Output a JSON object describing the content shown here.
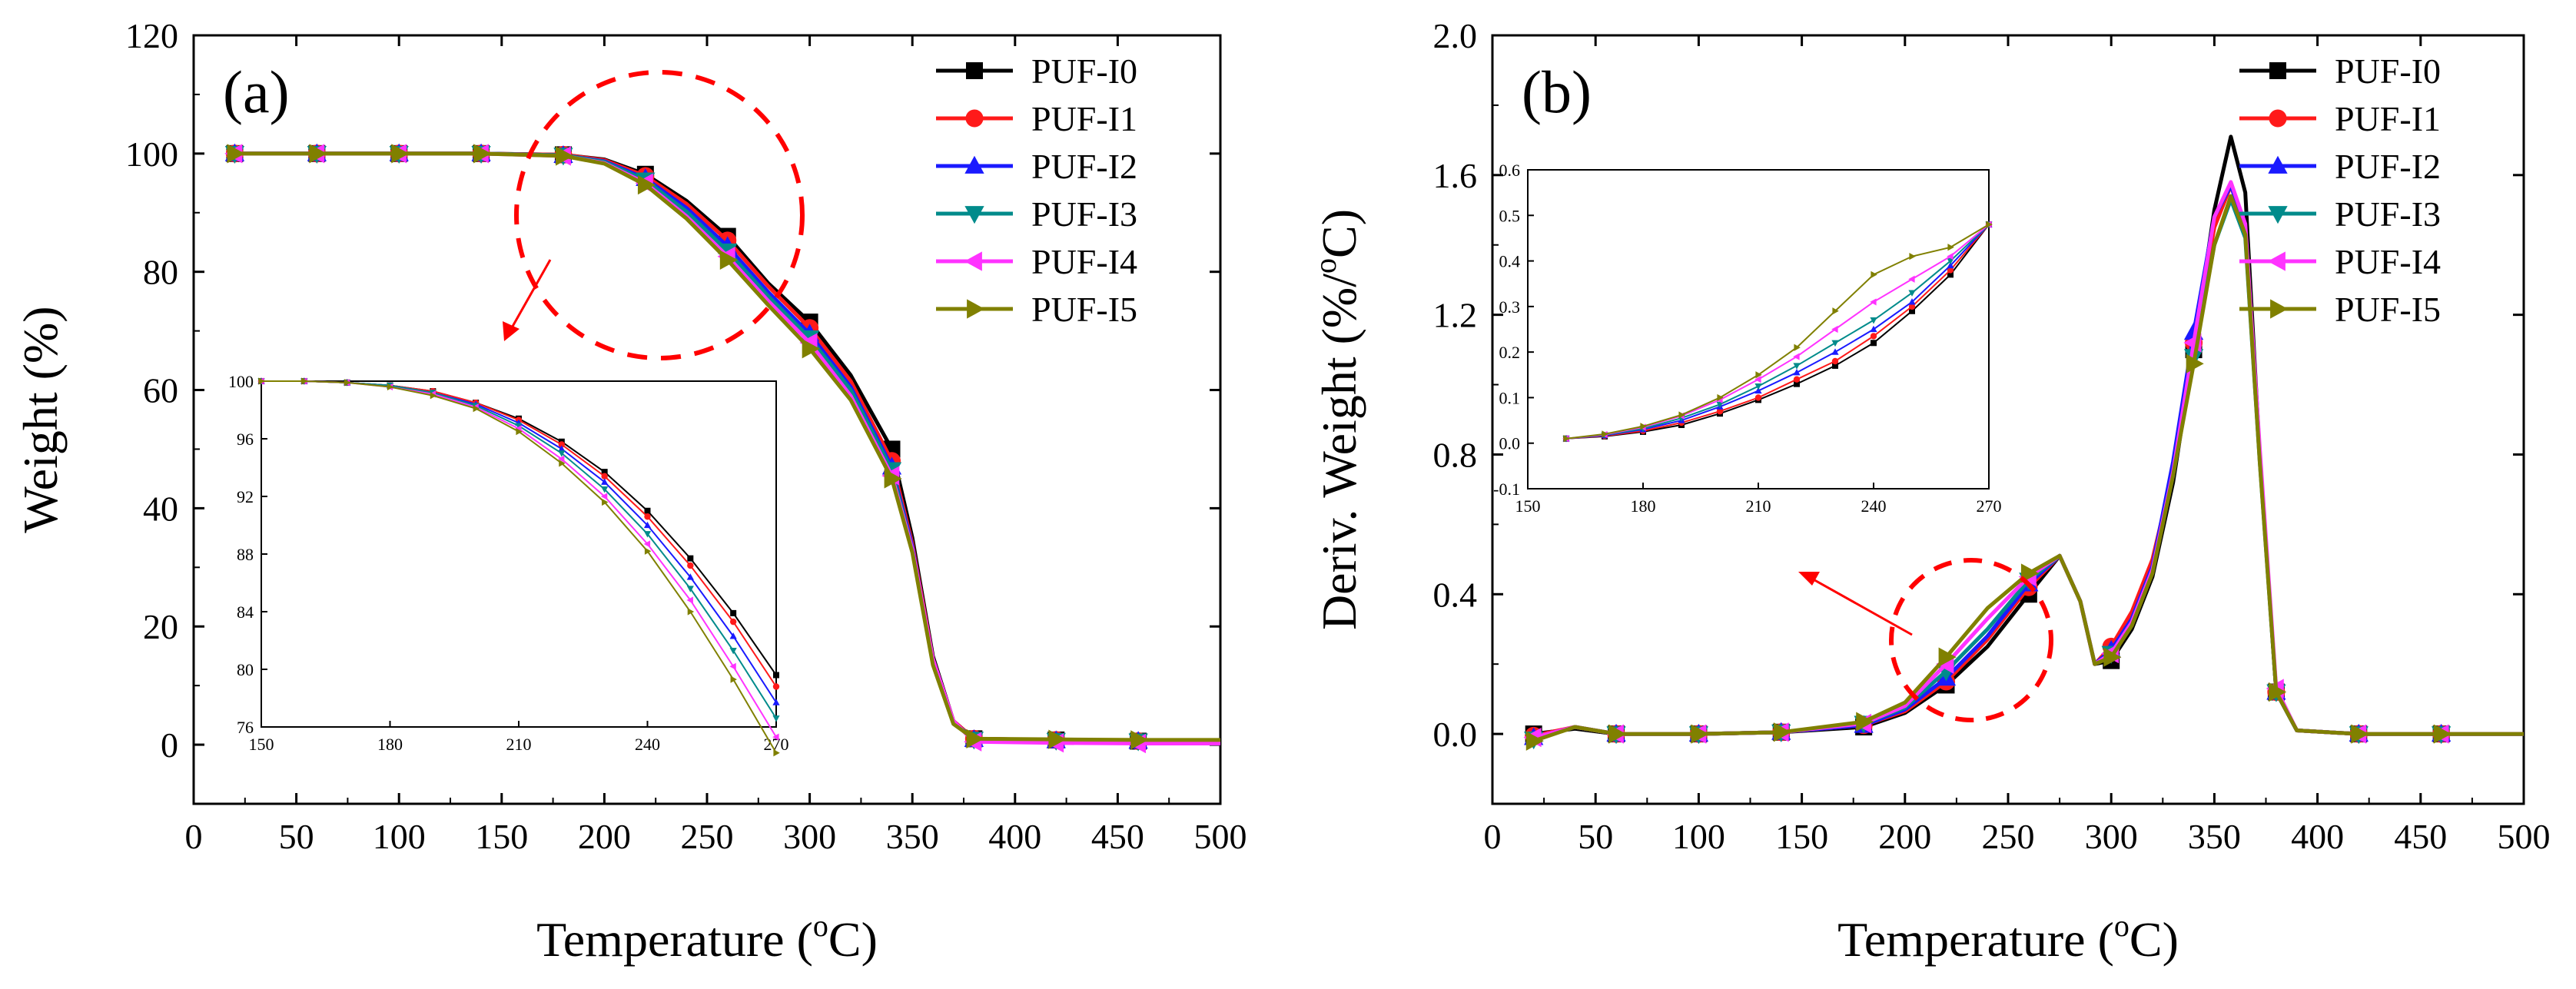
{
  "series_names": [
    "PUF-I0",
    "PUF-I1",
    "PUF-I2",
    "PUF-I3",
    "PUF-I4",
    "PUF-I5"
  ],
  "series_colors": [
    "#000000",
    "#ff1a1a",
    "#1a1aff",
    "#008b8b",
    "#ff33ff",
    "#808000"
  ],
  "series_markers": [
    "square",
    "circle",
    "triangle-up",
    "triangle-down",
    "triangle-left",
    "triangle-right"
  ],
  "highlight_color": "#ff0000",
  "chart_data": [
    {
      "type": "line",
      "panel_label": "(a)",
      "title": "",
      "xlabel": "Temperature (oC)",
      "xlabel_main": "Temperature (",
      "xlabel_sup": "o",
      "xlabel_tail": "C)",
      "ylabel": "Weight (%)",
      "xlim": [
        0,
        500
      ],
      "ylim": [
        -10,
        120
      ],
      "xticks": [
        0,
        50,
        100,
        150,
        200,
        250,
        300,
        350,
        400,
        450,
        500
      ],
      "yticks": [
        0,
        20,
        40,
        60,
        80,
        100,
        120
      ],
      "legend": "top-right",
      "x": [
        20,
        60,
        100,
        140,
        180,
        200,
        220,
        240,
        260,
        280,
        300,
        320,
        340,
        350,
        360,
        370,
        380,
        420,
        460,
        500
      ],
      "series": [
        {
          "name": "PUF-I0",
          "values": [
            100,
            100,
            100,
            100,
            99.8,
            99.0,
            96.5,
            92.0,
            86.0,
            78.0,
            71.5,
            62.5,
            50.0,
            35.0,
            15.0,
            4.0,
            1.0,
            0.8,
            0.6,
            0.5
          ]
        },
        {
          "name": "PUF-I1",
          "values": [
            100,
            100,
            100,
            100,
            99.8,
            98.9,
            96.2,
            91.5,
            85.3,
            77.5,
            70.5,
            61.5,
            48.0,
            34.0,
            14.5,
            4.0,
            1.0,
            0.8,
            0.6,
            0.5
          ]
        },
        {
          "name": "PUF-I2",
          "values": [
            100,
            100,
            100,
            100,
            99.7,
            98.7,
            95.8,
            90.8,
            84.3,
            76.5,
            69.5,
            60.5,
            47.0,
            33.5,
            14.0,
            3.8,
            0.9,
            0.7,
            0.6,
            0.5
          ]
        },
        {
          "name": "PUF-I3",
          "values": [
            100,
            100,
            100,
            100,
            99.7,
            98.6,
            95.5,
            90.2,
            83.5,
            75.8,
            68.8,
            60.0,
            46.5,
            33.0,
            14.0,
            3.8,
            0.9,
            0.7,
            0.6,
            0.5
          ]
        },
        {
          "name": "PUF-I4",
          "values": [
            100,
            100,
            100,
            100,
            99.6,
            98.4,
            95.0,
            89.4,
            82.6,
            75.0,
            68.0,
            59.0,
            45.5,
            33.0,
            14.5,
            4.0,
            0.5,
            0.3,
            0.2,
            0.2
          ]
        },
        {
          "name": "PUF-I5",
          "values": [
            100,
            100,
            100,
            100,
            99.6,
            98.3,
            94.7,
            89.0,
            82.0,
            74.3,
            67.0,
            58.3,
            45.0,
            32.5,
            13.5,
            3.5,
            1.0,
            0.9,
            0.8,
            0.8
          ]
        }
      ],
      "inset": {
        "xlim": [
          150,
          270
        ],
        "ylim": [
          76,
          100
        ],
        "xticks": [
          150,
          180,
          210,
          240,
          270
        ],
        "yticks": [
          76,
          80,
          84,
          88,
          92,
          96,
          100
        ],
        "x": [
          150,
          160,
          170,
          180,
          190,
          200,
          210,
          220,
          230,
          240,
          250,
          260,
          270
        ],
        "series": [
          {
            "name": "PUF-I0",
            "values": [
              100,
              100,
              99.9,
              99.7,
              99.3,
              98.5,
              97.4,
              95.8,
              93.7,
              91.0,
              87.7,
              83.9,
              79.6
            ]
          },
          {
            "name": "PUF-I1",
            "values": [
              100,
              100,
              99.9,
              99.7,
              99.3,
              98.5,
              97.3,
              95.6,
              93.4,
              90.6,
              87.2,
              83.3,
              78.8
            ]
          },
          {
            "name": "PUF-I2",
            "values": [
              100,
              100,
              99.9,
              99.7,
              99.2,
              98.4,
              97.1,
              95.3,
              93.0,
              90.0,
              86.4,
              82.3,
              77.7
            ]
          },
          {
            "name": "PUF-I3",
            "values": [
              100,
              100,
              99.9,
              99.7,
              99.2,
              98.3,
              96.9,
              95.0,
              92.5,
              89.4,
              85.6,
              81.3,
              76.6
            ]
          },
          {
            "name": "PUF-I4",
            "values": [
              100,
              100,
              99.9,
              99.6,
              99.1,
              98.2,
              96.7,
              94.6,
              92.0,
              88.7,
              84.8,
              80.2,
              75.3
            ]
          },
          {
            "name": "PUF-I5",
            "values": [
              100,
              100,
              99.9,
              99.6,
              99.0,
              98.1,
              96.5,
              94.3,
              91.6,
              88.2,
              84.0,
              79.3,
              74.2
            ]
          }
        ]
      }
    },
    {
      "type": "line",
      "panel_label": "(b)",
      "title": "",
      "xlabel": "Temperature (oC)",
      "xlabel_main": "Temperature (",
      "xlabel_sup": "o",
      "xlabel_tail": "C)",
      "ylabel": "Deriv. Weight (%/oC)",
      "ylabel_main": "Deriv. Weight (%/",
      "ylabel_sup": "o",
      "ylabel_tail": "C)",
      "xlim": [
        0,
        500
      ],
      "ylim": [
        -0.2,
        2.0
      ],
      "xticks": [
        0,
        50,
        100,
        150,
        200,
        250,
        300,
        350,
        400,
        450,
        500
      ],
      "yticks": [
        0.0,
        0.4,
        0.8,
        1.2,
        1.6,
        2.0
      ],
      "yticklabels": [
        "0.0",
        "0.4",
        "0.8",
        "1.2",
        "1.6",
        "2.0"
      ],
      "legend": "top-right",
      "x": [
        20,
        40,
        60,
        80,
        100,
        140,
        180,
        200,
        220,
        240,
        260,
        275,
        285,
        292,
        300,
        310,
        320,
        330,
        340,
        350,
        358,
        365,
        372,
        380,
        390,
        420,
        460,
        500
      ],
      "series": [
        {
          "name": "PUF-I0",
          "values": [
            0,
            0.015,
            0,
            0,
            0,
            0.005,
            0.02,
            0.06,
            0.14,
            0.25,
            0.4,
            0.51,
            0.38,
            0.2,
            0.21,
            0.3,
            0.45,
            0.72,
            1.1,
            1.5,
            1.71,
            1.55,
            0.8,
            0.12,
            0.01,
            0,
            0,
            0
          ]
        },
        {
          "name": "PUF-I1",
          "values": [
            -0.005,
            0.02,
            0,
            0,
            0,
            0.005,
            0.025,
            0.065,
            0.15,
            0.27,
            0.42,
            0.51,
            0.38,
            0.2,
            0.25,
            0.35,
            0.5,
            0.75,
            1.12,
            1.45,
            1.57,
            1.45,
            0.8,
            0.12,
            0.01,
            0,
            0,
            0
          ]
        },
        {
          "name": "PUF-I2",
          "values": [
            -0.01,
            0.02,
            0,
            0,
            0,
            0.005,
            0.025,
            0.07,
            0.16,
            0.28,
            0.43,
            0.51,
            0.38,
            0.2,
            0.24,
            0.33,
            0.48,
            0.78,
            1.15,
            1.48,
            1.57,
            1.45,
            0.8,
            0.12,
            0.01,
            0,
            0,
            0
          ]
        },
        {
          "name": "PUF-I3",
          "values": [
            -0.015,
            0.02,
            0,
            0,
            0,
            0.005,
            0.03,
            0.075,
            0.18,
            0.3,
            0.44,
            0.51,
            0.38,
            0.2,
            0.23,
            0.32,
            0.47,
            0.74,
            1.08,
            1.4,
            1.53,
            1.42,
            0.78,
            0.12,
            0.01,
            0,
            0,
            0
          ]
        },
        {
          "name": "PUF-I4",
          "values": [
            -0.01,
            0.02,
            0,
            0,
            0,
            0.005,
            0.03,
            0.08,
            0.2,
            0.33,
            0.45,
            0.51,
            0.38,
            0.2,
            0.23,
            0.32,
            0.47,
            0.75,
            1.12,
            1.48,
            1.58,
            1.46,
            0.82,
            0.13,
            0.01,
            0,
            0,
            0
          ]
        },
        {
          "name": "PUF-I5",
          "values": [
            -0.02,
            0.02,
            0,
            0,
            0,
            0.005,
            0.035,
            0.09,
            0.22,
            0.36,
            0.46,
            0.51,
            0.38,
            0.2,
            0.22,
            0.31,
            0.46,
            0.74,
            1.06,
            1.4,
            1.54,
            1.43,
            0.78,
            0.12,
            0.01,
            0,
            0,
            0
          ]
        }
      ],
      "inset": {
        "xlim": [
          150,
          270
        ],
        "ylim": [
          -0.1,
          0.6
        ],
        "xticks": [
          150,
          180,
          210,
          240,
          270
        ],
        "yticks": [
          -0.1,
          0,
          0.1,
          0.2,
          0.3,
          0.4,
          0.5,
          0.6
        ],
        "yticklabels": [
          "-0.1",
          "0.0",
          "0.1",
          "0.2",
          "0.3",
          "0.4",
          "0.5",
          "0.6"
        ],
        "x": [
          160,
          170,
          180,
          190,
          200,
          210,
          220,
          230,
          240,
          250,
          260,
          270
        ],
        "series": [
          {
            "name": "PUF-I0",
            "values": [
              0.01,
              0.015,
              0.025,
              0.04,
              0.065,
              0.095,
              0.13,
              0.17,
              0.22,
              0.29,
              0.37,
              0.48
            ]
          },
          {
            "name": "PUF-I1",
            "values": [
              0.01,
              0.016,
              0.027,
              0.045,
              0.07,
              0.1,
              0.14,
              0.18,
              0.235,
              0.3,
              0.38,
              0.48
            ]
          },
          {
            "name": "PUF-I2",
            "values": [
              0.01,
              0.017,
              0.03,
              0.05,
              0.08,
              0.115,
              0.155,
              0.2,
              0.25,
              0.31,
              0.39,
              0.48
            ]
          },
          {
            "name": "PUF-I3",
            "values": [
              0.01,
              0.018,
              0.032,
              0.055,
              0.085,
              0.125,
              0.17,
              0.22,
              0.27,
              0.33,
              0.4,
              0.48
            ]
          },
          {
            "name": "PUF-I4",
            "values": [
              0.01,
              0.019,
              0.035,
              0.06,
              0.095,
              0.14,
              0.19,
              0.25,
              0.31,
              0.36,
              0.41,
              0.48
            ]
          },
          {
            "name": "PUF-I5",
            "values": [
              0.01,
              0.02,
              0.037,
              0.062,
              0.1,
              0.15,
              0.21,
              0.29,
              0.37,
              0.41,
              0.43,
              0.48
            ]
          }
        ]
      }
    }
  ]
}
